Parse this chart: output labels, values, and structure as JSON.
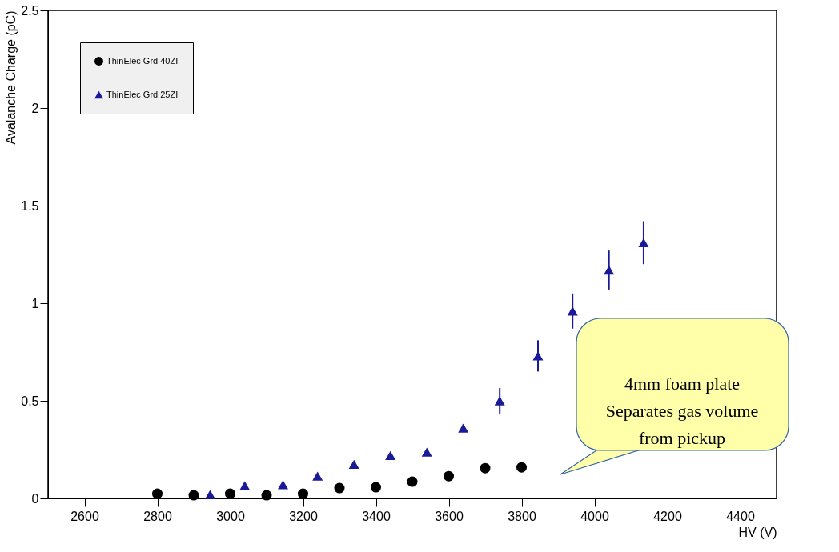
{
  "chart_data": {
    "type": "scatter",
    "xlabel": "HV (V)",
    "ylabel": "Avalanche Charge (pC)",
    "xlim": [
      2500,
      4500
    ],
    "xticks": [
      2600,
      2800,
      3000,
      3200,
      3400,
      3600,
      3800,
      4000,
      4200,
      4400
    ],
    "ylim": [
      0,
      2.5
    ],
    "yticks": [
      0,
      0.5,
      1,
      1.5,
      2,
      2.5
    ],
    "grid": false,
    "legend": "top left",
    "series": [
      {
        "name": "ThinElec Grd 40ZI",
        "color": "#000000",
        "marker": "circle",
        "x": [
          2800,
          2900,
          3000,
          3100,
          3200,
          3300,
          3400,
          3500,
          3600,
          3700,
          3800
        ],
        "values": [
          0.024,
          0.016,
          0.024,
          0.016,
          0.024,
          0.053,
          0.057,
          0.086,
          0.114,
          0.155,
          0.159
        ]
      },
      {
        "name": "ThinElec Grd 25ZI",
        "color": "#1a1a99",
        "marker": "triangle",
        "x": [
          2945,
          3040,
          3145,
          3240,
          3340,
          3440,
          3540,
          3640,
          3740,
          3845,
          3940,
          4040,
          4135
        ],
        "values": [
          0.02,
          0.065,
          0.07,
          0.114,
          0.175,
          0.22,
          0.237,
          0.36,
          0.5,
          0.73,
          0.96,
          1.17,
          1.31
        ],
        "errors": [
          null,
          null,
          null,
          null,
          null,
          null,
          null,
          0.02,
          0.065,
          0.08,
          0.09,
          0.1,
          0.11
        ]
      }
    ],
    "annotations": [
      "4mm foam plate\nSeparates gas volume\nfrom pickup"
    ]
  }
}
